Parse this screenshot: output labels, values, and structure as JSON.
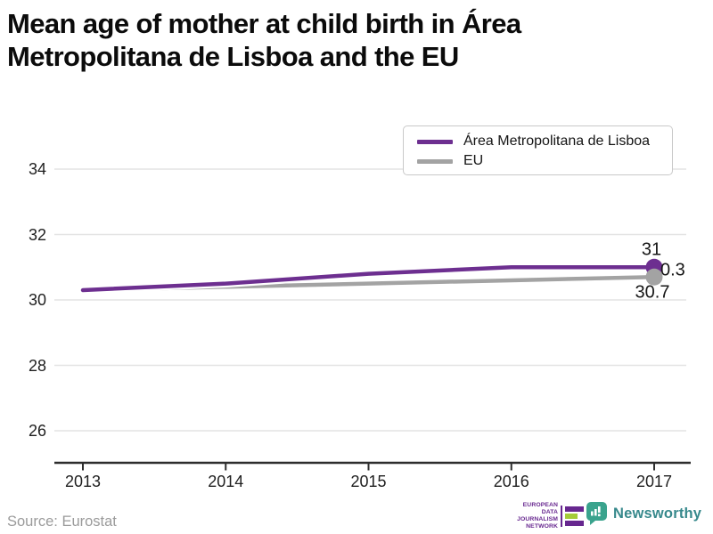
{
  "title": {
    "line1": "Mean age of mother at child birth in Área",
    "line2": "Metropolitana de Lisboa and the EU"
  },
  "chart_data": {
    "type": "line",
    "title": "Mean age of mother at child birth in Área Metropolitana de Lisboa and the EU",
    "x": [
      2013,
      2014,
      2015,
      2016,
      2017
    ],
    "series": [
      {
        "name": "Área Metropolitana de Lisboa",
        "color": "#6d2f90",
        "values": [
          30.3,
          30.5,
          30.8,
          31.0,
          31.0
        ]
      },
      {
        "name": "EU",
        "color": "#a3a3a3",
        "values": [
          30.3,
          30.4,
          30.5,
          30.6,
          30.7
        ]
      }
    ],
    "yticks": [
      26,
      28,
      30,
      32,
      34
    ],
    "ylim": [
      25.0,
      35.4
    ],
    "xlabel": "",
    "ylabel": "",
    "grid": true,
    "legend_position": "top-right",
    "end_labels": {
      "lisboa": "31",
      "diff": "0.3",
      "eu": "30.7"
    },
    "grid_color": "#e4e4e4",
    "axis_color": "#2d2d2d"
  },
  "footer": {
    "source": "Source: Eurostat",
    "edjn": {
      "line1": "EUROPEAN",
      "line2": "DATA JOURNALISM",
      "line3": "NETWORK"
    },
    "newsworthy": "Newsworthy"
  }
}
